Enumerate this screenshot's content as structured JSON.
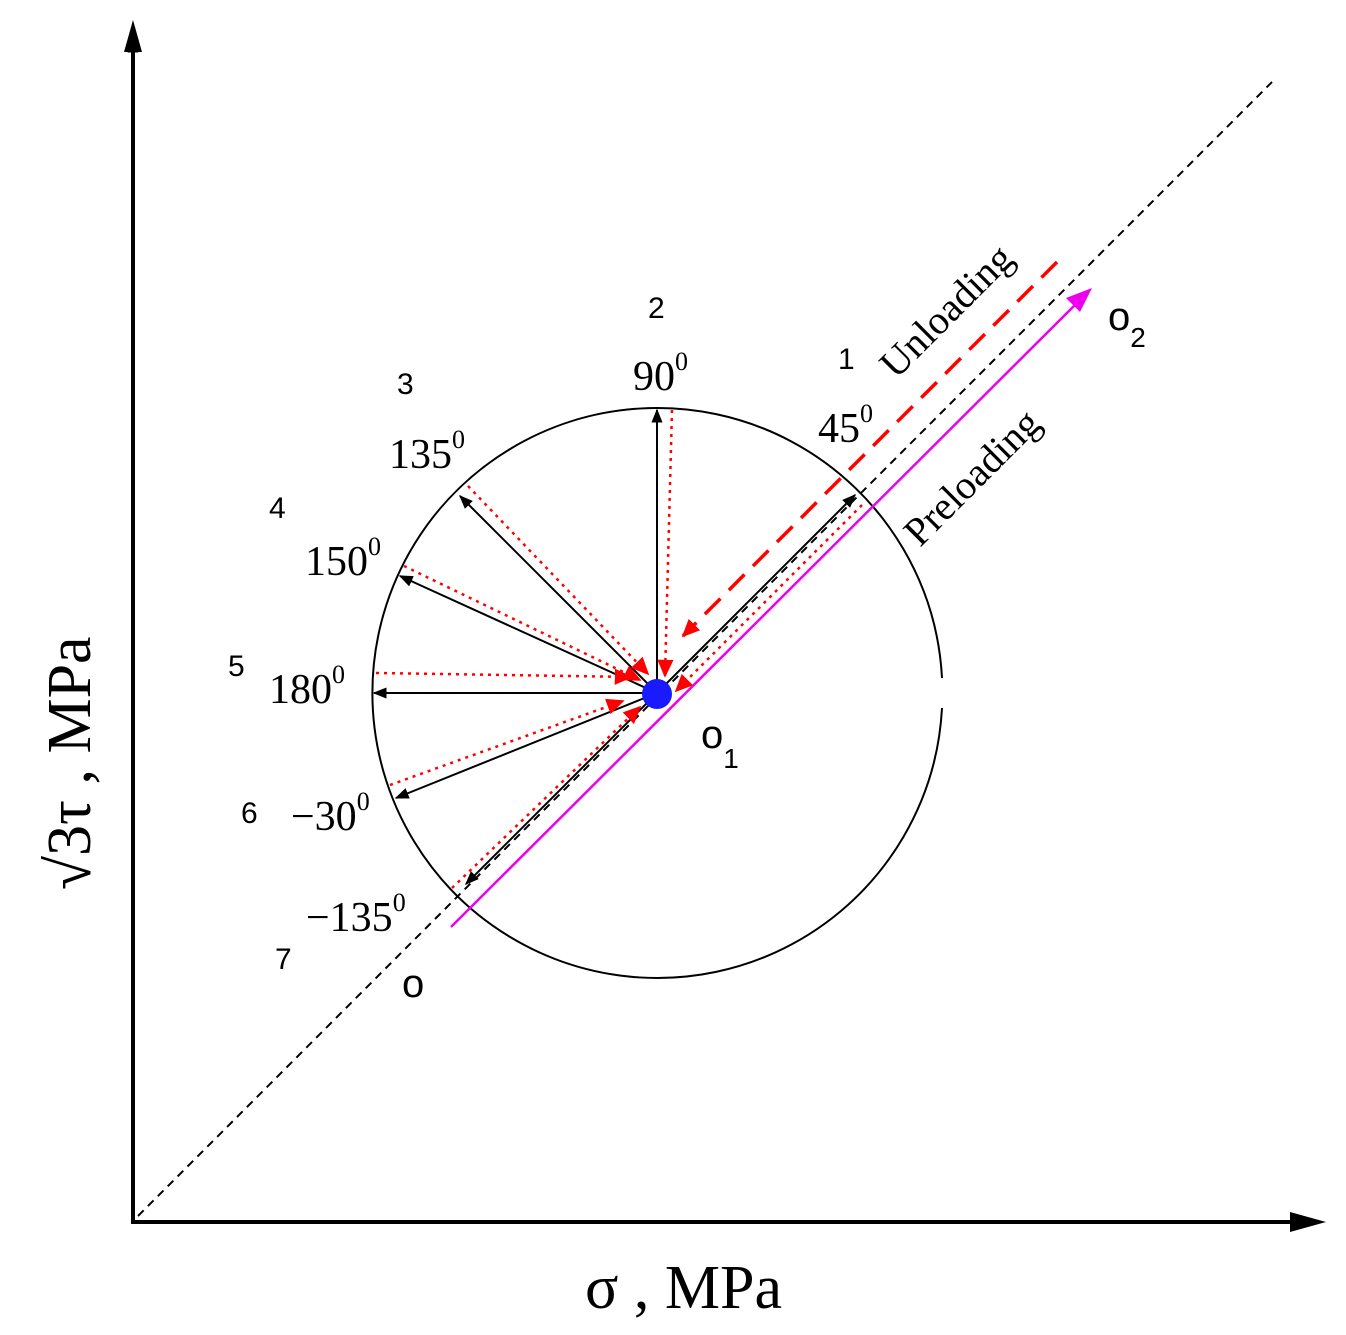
{
  "colors": {
    "axis": "#000000",
    "loading_arrow": "#000000",
    "unloading_arrow": "#ff0000",
    "preloading_path": "#ee00ee",
    "center_point": "#1a1aff",
    "reference_line": "#000000"
  },
  "axes": {
    "x_label": "σ ,   MPa",
    "y_label": "√3τ ,  MPa"
  },
  "points": {
    "origin": "o",
    "center": "o",
    "center_sub": "1",
    "end": "o",
    "end_sub": "2"
  },
  "paths": {
    "preloading": "Preloading",
    "unloading": "Unloading"
  },
  "directions": [
    {
      "index": "1",
      "angle": "45",
      "sup": "0"
    },
    {
      "index": "2",
      "angle": "90",
      "sup": "0"
    },
    {
      "index": "3",
      "angle": "135",
      "sup": "0"
    },
    {
      "index": "4",
      "angle": "150",
      "sup": "0"
    },
    {
      "index": "5",
      "angle": "180",
      "sup": "0"
    },
    {
      "index": "6",
      "angle": "−30",
      "sup": "0"
    },
    {
      "index": "7",
      "angle": "−135",
      "sup": "0"
    }
  ]
}
